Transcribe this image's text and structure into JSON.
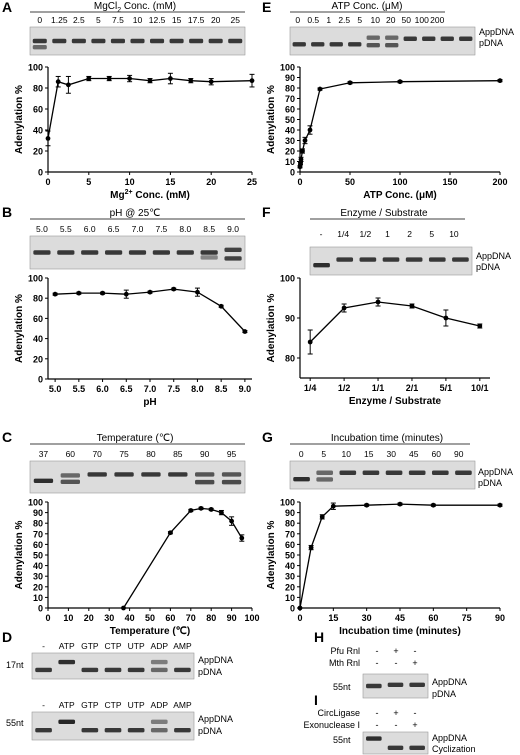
{
  "panel_letters": [
    "A",
    "B",
    "C",
    "D",
    "E",
    "F",
    "G",
    "H",
    "I"
  ],
  "text": {
    "ylabel": "Adenylation %",
    "band_app": "AppDNA",
    "band_p": "pDNA",
    "band_cyc": "Cyclization",
    "nt17": "17nt",
    "nt55": "55nt",
    "dash": "-",
    "plus": "+"
  },
  "gels": {
    "A": {
      "header": "MgCl",
      "header_sub": "2",
      "header_tail": " Conc. (mM)",
      "lanes": [
        "0",
        "1.25",
        "2.5",
        "5",
        "7.5",
        "10",
        "12.5",
        "15",
        "17.5",
        "20",
        "25"
      ]
    },
    "B": {
      "header": "pH @ 25℃",
      "lanes": [
        "5.0",
        "5.5",
        "6.0",
        "6.5",
        "7.0",
        "7.5",
        "8.0",
        "8.5",
        "9.0"
      ]
    },
    "C": {
      "header": "Temperature (℃)",
      "lanes": [
        "37",
        "60",
        "70",
        "75",
        "80",
        "85",
        "90",
        "95"
      ]
    },
    "D": {
      "lanes": [
        "-",
        "ATP",
        "GTP",
        "CTP",
        "UTP",
        "ADP",
        "AMP"
      ]
    },
    "E": {
      "header": "ATP Conc. (μM)",
      "lanes": [
        "0",
        "0.5",
        "1",
        "2.5",
        "5",
        "10",
        "20",
        "50",
        "100",
        "200"
      ]
    },
    "F": {
      "header": "Enzyme / Substrate",
      "lanes": [
        "-",
        "1/4",
        "1/2",
        "1",
        "2",
        "5",
        "10"
      ]
    },
    "G": {
      "header": "Incubation time (minutes)",
      "lanes": [
        "0",
        "5",
        "10",
        "15",
        "30",
        "45",
        "60",
        "90"
      ]
    },
    "H": {
      "rows": [
        {
          "label": "Pfu Rnl",
          "signs": [
            "-",
            "+",
            "-"
          ]
        },
        {
          "label": "Mth Rnl",
          "signs": [
            "-",
            "-",
            "+"
          ]
        }
      ]
    },
    "I": {
      "rows": [
        {
          "label": "CircLigase",
          "signs": [
            "-",
            "+",
            "-"
          ]
        },
        {
          "label": "Exonuclease I",
          "signs": [
            "-",
            "-",
            "+"
          ]
        }
      ]
    }
  },
  "chart_data": [
    {
      "panel": "A",
      "type": "line",
      "xlabel": "Mg2+ Conc. (mM)",
      "xlabel_main": "Mg",
      "xlabel_sup": "2+",
      "xlabel_tail": " Conc. (mM)",
      "ylabel": "Adenylation %",
      "xlim": [
        0,
        25
      ],
      "ylim": [
        0,
        100
      ],
      "xticks": [
        0,
        5,
        10,
        15,
        20,
        25
      ],
      "yticks": [
        0,
        20,
        40,
        60,
        80,
        100
      ],
      "x": [
        0,
        1.25,
        2.5,
        5,
        7.5,
        10,
        12.5,
        15,
        17.5,
        20,
        25
      ],
      "y": [
        32,
        86,
        83,
        89,
        89,
        89,
        87,
        89,
        87,
        86,
        87
      ],
      "err": [
        7,
        5,
        8,
        2,
        2,
        3,
        2,
        5,
        2,
        3,
        6
      ]
    },
    {
      "panel": "B",
      "type": "line",
      "xlabel": "pH",
      "ylabel": "Adenylation %",
      "ylim": [
        0,
        100
      ],
      "yticks": [
        0,
        20,
        40,
        60,
        80,
        100
      ],
      "categories": [
        "5.0",
        "5.5",
        "6.0",
        "6.5",
        "7.0",
        "7.5",
        "8.0",
        "8.5",
        "9.0"
      ],
      "y": [
        84,
        85,
        85,
        84,
        86,
        89,
        86,
        72,
        47
      ],
      "err": [
        1,
        1,
        1,
        4,
        1,
        1,
        4,
        1,
        1
      ]
    },
    {
      "panel": "C",
      "type": "line",
      "xlabel": "Temperature (℃)",
      "ylabel": "Adenylation %",
      "xlim": [
        0,
        100
      ],
      "ylim": [
        0,
        100
      ],
      "xticks": [
        0,
        10,
        20,
        30,
        40,
        50,
        60,
        70,
        80,
        90,
        100
      ],
      "yticks": [
        0,
        10,
        20,
        30,
        40,
        50,
        60,
        70,
        80,
        90,
        100
      ],
      "x": [
        37,
        60,
        70,
        75,
        80,
        85,
        90,
        95
      ],
      "y": [
        0,
        71,
        92,
        94,
        93,
        90,
        82,
        66
      ],
      "err": [
        0,
        1,
        1,
        1,
        1,
        2,
        4,
        3
      ]
    },
    {
      "panel": "E",
      "type": "line",
      "xlabel": "ATP Conc. (μM)",
      "ylabel": "Adenylation %",
      "xlim": [
        0,
        200
      ],
      "ylim": [
        0,
        100
      ],
      "xticks": [
        0,
        50,
        100,
        150,
        200
      ],
      "yticks": [
        0,
        10,
        20,
        30,
        40,
        50,
        60,
        70,
        80,
        90,
        100
      ],
      "x": [
        0,
        0.5,
        1,
        2.5,
        5,
        10,
        20,
        50,
        100,
        200
      ],
      "y": [
        5,
        8,
        12,
        20,
        30,
        40,
        79,
        85,
        86,
        87
      ],
      "err": [
        1,
        1,
        2,
        2,
        3,
        4,
        1,
        1,
        1,
        1
      ]
    },
    {
      "panel": "F",
      "type": "line",
      "xlabel": "Enzyme / Substrate",
      "ylabel": "Adenylation %",
      "ylim": [
        75,
        100
      ],
      "yticks": [
        80,
        90,
        100
      ],
      "categories": [
        "1/4",
        "1/2",
        "1/1",
        "2/1",
        "5/1",
        "10/1"
      ],
      "y": [
        84,
        92.5,
        94,
        93,
        90,
        88
      ],
      "err": [
        3,
        1,
        1,
        0.5,
        2,
        0.5
      ]
    },
    {
      "panel": "G",
      "type": "line",
      "xlabel": "Incubation time (minutes)",
      "ylabel": "Adenylation %",
      "xlim": [
        0,
        90
      ],
      "ylim": [
        0,
        100
      ],
      "xticks": [
        0,
        15,
        30,
        45,
        60,
        75,
        90
      ],
      "yticks": [
        0,
        10,
        20,
        30,
        40,
        50,
        60,
        70,
        80,
        90,
        100
      ],
      "x": [
        0,
        5,
        10,
        15,
        30,
        45,
        60,
        90
      ],
      "y": [
        0,
        57,
        86,
        96,
        97,
        98,
        97,
        97
      ],
      "err": [
        0,
        2,
        2,
        3,
        1,
        1,
        1,
        1
      ]
    }
  ]
}
